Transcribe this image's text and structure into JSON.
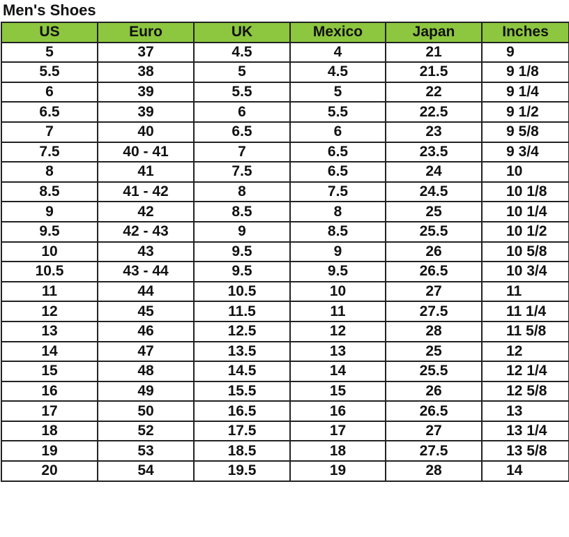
{
  "title": "Men's Shoes",
  "header_color": "#8dc63f",
  "columns": [
    "US",
    "Euro",
    "UK",
    "Mexico",
    "Japan",
    "Inches"
  ],
  "rows": [
    [
      "5",
      "37",
      "4.5",
      "4",
      "21",
      "9"
    ],
    [
      "5.5",
      "38",
      "5",
      "4.5",
      "21.5",
      "9 1/8"
    ],
    [
      "6",
      "39",
      "5.5",
      "5",
      "22",
      "9 1/4"
    ],
    [
      "6.5",
      "39",
      "6",
      "5.5",
      "22.5",
      "9 1/2"
    ],
    [
      "7",
      "40",
      "6.5",
      "6",
      "23",
      "9 5/8"
    ],
    [
      "7.5",
      "40 - 41",
      "7",
      "6.5",
      "23.5",
      "9 3/4"
    ],
    [
      "8",
      "41",
      "7.5",
      "6.5",
      "24",
      "10"
    ],
    [
      "8.5",
      "41 - 42",
      "8",
      "7.5",
      "24.5",
      "10 1/8"
    ],
    [
      "9",
      "42",
      "8.5",
      "8",
      "25",
      "10 1/4"
    ],
    [
      "9.5",
      "42 - 43",
      "9",
      "8.5",
      "25.5",
      "10 1/2"
    ],
    [
      "10",
      "43",
      "9.5",
      "9",
      "26",
      "10 5/8"
    ],
    [
      "10.5",
      "43 - 44",
      "9.5",
      "9.5",
      "26.5",
      "10 3/4"
    ],
    [
      "11",
      "44",
      "10.5",
      "10",
      "27",
      "11"
    ],
    [
      "12",
      "45",
      "11.5",
      "11",
      "27.5",
      "11 1/4"
    ],
    [
      "13",
      "46",
      "12.5",
      "12",
      "28",
      "11 5/8"
    ],
    [
      "14",
      "47",
      "13.5",
      "13",
      "25",
      "12"
    ],
    [
      "15",
      "48",
      "14.5",
      "14",
      "25.5",
      "12 1/4"
    ],
    [
      "16",
      "49",
      "15.5",
      "15",
      "26",
      "12 5/8"
    ],
    [
      "17",
      "50",
      "16.5",
      "16",
      "26.5",
      "13"
    ],
    [
      "18",
      "52",
      "17.5",
      "17",
      "27",
      "13 1/4"
    ],
    [
      "19",
      "53",
      "18.5",
      "18",
      "27.5",
      "13 5/8"
    ],
    [
      "20",
      "54",
      "19.5",
      "19",
      "28",
      "14"
    ]
  ]
}
